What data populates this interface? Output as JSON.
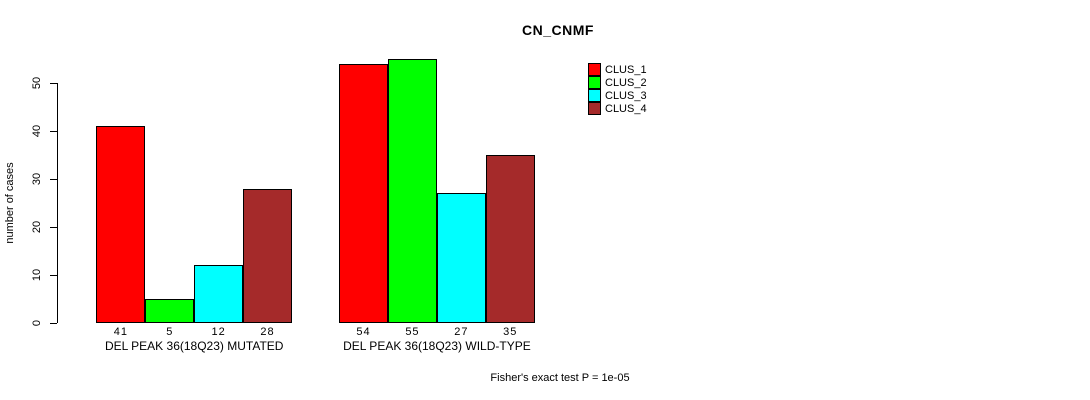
{
  "chart_data": {
    "type": "bar",
    "title": "CN_CNMF",
    "ylabel": "number of cases",
    "yticks": [
      0,
      10,
      20,
      30,
      40,
      50
    ],
    "ylim": [
      0,
      55
    ],
    "grid": false,
    "legend_position": "top-right",
    "legend_entries": [
      {
        "name": "CLUS_1",
        "color": "#FF0000"
      },
      {
        "name": "CLUS_2",
        "color": "#00FF00"
      },
      {
        "name": "CLUS_3",
        "color": "#00FFFF"
      },
      {
        "name": "CLUS_4",
        "color": "#A52A2A"
      }
    ],
    "groups": [
      {
        "label": "DEL PEAK 36(18Q23) MUTATED",
        "values": [
          41,
          5,
          12,
          28
        ]
      },
      {
        "label": "DEL PEAK 36(18Q23) WILD-TYPE",
        "values": [
          54,
          55,
          27,
          35
        ]
      }
    ],
    "annotation": "Fisher's exact test P = 1e-05",
    "colors": {
      "axis": "#000000",
      "background": "#ffffff"
    }
  }
}
